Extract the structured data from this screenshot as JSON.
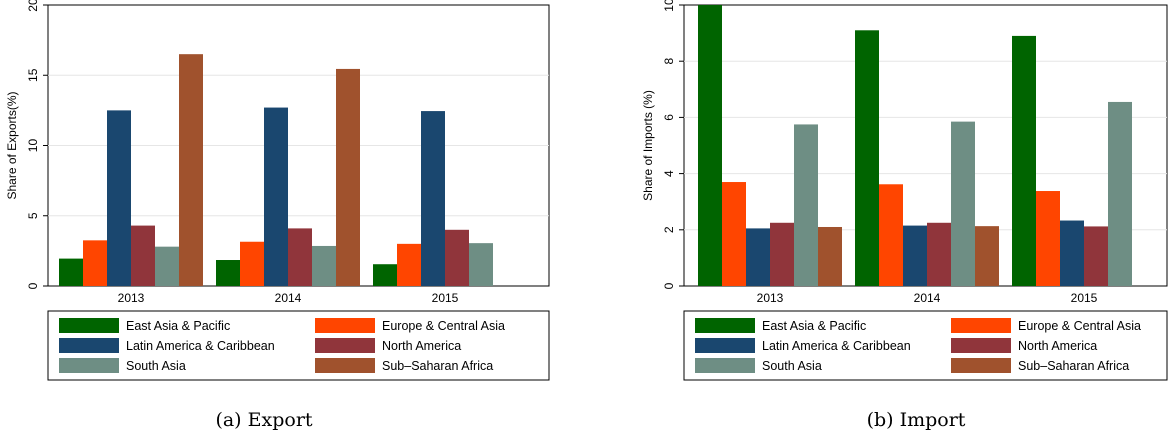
{
  "colors": {
    "East Asia & Pacific": "#006400",
    "Europe & Central Asia": "#ff4500",
    "Latin America & Caribbean": "#1a476f",
    "North America": "#90353b",
    "South Asia": "#6e8e84",
    "Sub–Saharan Africa": "#a0522d"
  },
  "chart_data": [
    {
      "type": "bar",
      "caption": "(a) Export",
      "ylabel": "Share of Exports(%)",
      "xlabel": "",
      "ylim": [
        0,
        20
      ],
      "yticks": [
        0,
        5,
        10,
        15,
        20
      ],
      "grid": true,
      "legend_position": "bottom",
      "categories": [
        "2013",
        "2014",
        "2015"
      ],
      "series": [
        {
          "name": "East Asia & Pacific",
          "values": [
            1.95,
            1.85,
            1.55
          ]
        },
        {
          "name": "Europe & Central Asia",
          "values": [
            3.25,
            3.15,
            3.0
          ]
        },
        {
          "name": "Latin America & Caribbean",
          "values": [
            12.5,
            12.7,
            12.45
          ]
        },
        {
          "name": "North America",
          "values": [
            4.3,
            4.1,
            4.0
          ]
        },
        {
          "name": "South Asia",
          "values": [
            2.8,
            2.85,
            3.05
          ]
        },
        {
          "name": "Sub–Saharan Africa",
          "values": [
            16.5,
            15.45,
            null
          ]
        }
      ]
    },
    {
      "type": "bar",
      "caption": "(b) Import",
      "ylabel": "Share of Imports (%)",
      "xlabel": "",
      "ylim": [
        0,
        10
      ],
      "yticks": [
        0,
        2,
        4,
        6,
        8,
        10
      ],
      "grid": true,
      "legend_position": "bottom",
      "categories": [
        "2013",
        "2014",
        "2015"
      ],
      "series": [
        {
          "name": "East Asia & Pacific",
          "values": [
            10.0,
            9.1,
            8.9
          ]
        },
        {
          "name": "Europe & Central Asia",
          "values": [
            3.7,
            3.62,
            3.38
          ]
        },
        {
          "name": "Latin America & Caribbean",
          "values": [
            2.05,
            2.15,
            2.33
          ]
        },
        {
          "name": "North America",
          "values": [
            2.25,
            2.25,
            2.12
          ]
        },
        {
          "name": "South Asia",
          "values": [
            5.75,
            5.85,
            6.55
          ]
        },
        {
          "name": "Sub–Saharan Africa",
          "values": [
            2.1,
            2.13,
            null
          ]
        }
      ]
    }
  ]
}
